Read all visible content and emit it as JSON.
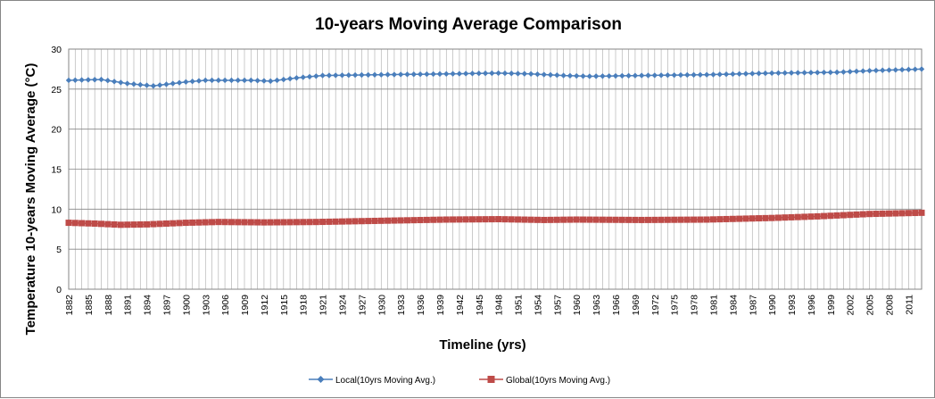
{
  "chart_data": {
    "type": "line",
    "title": "10-years Moving Average Comparison",
    "xlabel": "Timeline (yrs)",
    "ylabel": "Temperature 10-years Moving Average (°C)",
    "ylim": [
      0,
      30
    ],
    "yticks": [
      0,
      5,
      10,
      15,
      20,
      25,
      30
    ],
    "xrange": [
      1882,
      2013
    ],
    "xtick_labels": [
      "1882",
      "1885",
      "1888",
      "1891",
      "1894",
      "1897",
      "1900",
      "1903",
      "1906",
      "1909",
      "1912",
      "1915",
      "1918",
      "1921",
      "1924",
      "1927",
      "1930",
      "1933",
      "1936",
      "1939",
      "1942",
      "1945",
      "1948",
      "1951",
      "1954",
      "1957",
      "1960",
      "1963",
      "1966",
      "1969",
      "1972",
      "1975",
      "1978",
      "1981",
      "1984",
      "1987",
      "1990",
      "1993",
      "1996",
      "1999",
      "2002",
      "2005",
      "2008",
      "2011"
    ],
    "grid": "vertical gridlines at every year, horizontal at each y tick",
    "legend_position": "bottom",
    "series": [
      {
        "name": "Local(10yrs Moving Avg.)",
        "color": "#4a7ebb",
        "marker": "diamond",
        "anchors": [
          [
            1882,
            26.1
          ],
          [
            1887,
            26.2
          ],
          [
            1891,
            25.7
          ],
          [
            1895,
            25.4
          ],
          [
            1900,
            25.9
          ],
          [
            1903,
            26.1
          ],
          [
            1910,
            26.1
          ],
          [
            1913,
            26.0
          ],
          [
            1917,
            26.4
          ],
          [
            1921,
            26.7
          ],
          [
            1930,
            26.8
          ],
          [
            1940,
            26.9
          ],
          [
            1948,
            27.0
          ],
          [
            1953,
            26.9
          ],
          [
            1958,
            26.7
          ],
          [
            1962,
            26.6
          ],
          [
            1970,
            26.7
          ],
          [
            1980,
            26.8
          ],
          [
            1990,
            27.0
          ],
          [
            2000,
            27.1
          ],
          [
            2005,
            27.3
          ],
          [
            2013,
            27.5
          ]
        ]
      },
      {
        "name": "Global(10yrs Moving Avg.)",
        "color": "#be4b48",
        "marker": "square",
        "anchors": [
          [
            1882,
            8.3
          ],
          [
            1886,
            8.2
          ],
          [
            1890,
            8.05
          ],
          [
            1894,
            8.1
          ],
          [
            1900,
            8.3
          ],
          [
            1905,
            8.4
          ],
          [
            1912,
            8.35
          ],
          [
            1920,
            8.4
          ],
          [
            1930,
            8.55
          ],
          [
            1940,
            8.7
          ],
          [
            1948,
            8.75
          ],
          [
            1955,
            8.65
          ],
          [
            1960,
            8.7
          ],
          [
            1970,
            8.65
          ],
          [
            1980,
            8.7
          ],
          [
            1990,
            8.9
          ],
          [
            1997,
            9.1
          ],
          [
            2005,
            9.4
          ],
          [
            2013,
            9.55
          ]
        ]
      }
    ]
  }
}
